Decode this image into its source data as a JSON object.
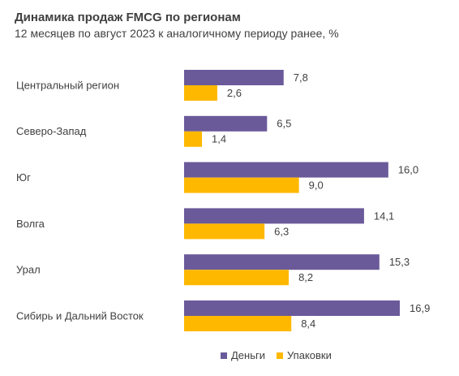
{
  "colors": {
    "money": "#6a5a9a",
    "packages": "#ffb800",
    "text": "#404040"
  },
  "chart_data": {
    "type": "bar",
    "orientation": "horizontal",
    "title": "Динамика продаж FMCG по регионам",
    "subtitle": "12 месяцев по август 2023 к аналогичному периоду ранее, %",
    "categories": [
      "Центральный регион",
      "Северо-Запад",
      "Юг",
      "Волга",
      "Урал",
      "Сибирь и Дальний Восток"
    ],
    "series": [
      {
        "name": "Деньги",
        "values": [
          7.8,
          6.5,
          16.0,
          14.1,
          15.3,
          16.9
        ],
        "labels": [
          "7,8",
          "6,5",
          "16,0",
          "14,1",
          "15,3",
          "16,9"
        ],
        "color": "#6a5a9a"
      },
      {
        "name": "Упаковки",
        "values": [
          2.6,
          1.4,
          9.0,
          6.3,
          8.2,
          8.4
        ],
        "labels": [
          "2,6",
          "1,4",
          "9,0",
          "6,3",
          "8,2",
          "8,4"
        ],
        "color": "#ffb800"
      }
    ],
    "xlim": [
      0,
      16.9
    ],
    "grid": false,
    "legend_position": "bottom"
  }
}
